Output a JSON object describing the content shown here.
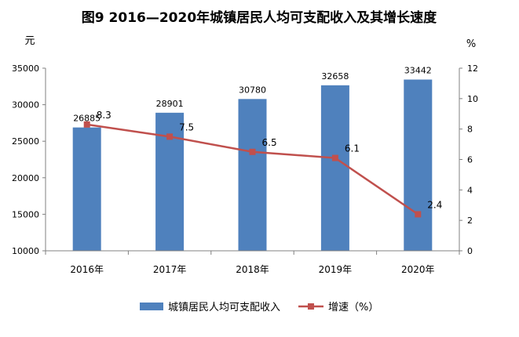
{
  "chart_data": {
    "type": "bar",
    "title": "图9      2016—2020年城镇居民人均可支配收入及其增长速度",
    "categories": [
      "2016年",
      "2017年",
      "2018年",
      "2019年",
      "2020年"
    ],
    "series": [
      {
        "name": "城镇居民人均可支配收入",
        "type": "bar",
        "axis": "left",
        "values": [
          26885,
          28901,
          30780,
          32658,
          33442
        ],
        "color": "#4f81bd"
      },
      {
        "name": "增速（%）",
        "type": "line",
        "axis": "right",
        "values": [
          8.3,
          7.5,
          6.5,
          6.1,
          2.4
        ],
        "color": "#c0504d"
      }
    ],
    "y_left": {
      "unit": "元",
      "min": 10000,
      "max": 35000,
      "step": 5000
    },
    "y_right": {
      "unit": "%",
      "min": 0,
      "max": 12,
      "step": 2
    },
    "grid": false,
    "legend_position": "bottom"
  }
}
